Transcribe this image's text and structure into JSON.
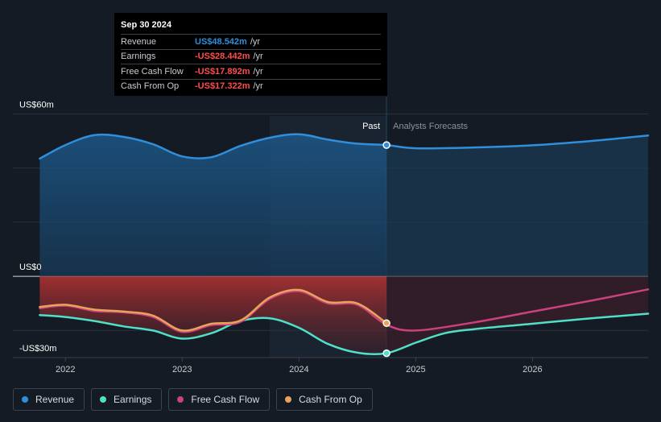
{
  "tooltip": {
    "date": "Sep 30 2024",
    "rows": [
      {
        "label": "Revenue",
        "value": "US$48.542m",
        "unit": "/yr",
        "color": "#2f8fdc"
      },
      {
        "label": "Earnings",
        "value": "-US$28.442m",
        "unit": "/yr",
        "color": "#ff4d4d"
      },
      {
        "label": "Free Cash Flow",
        "value": "-US$17.892m",
        "unit": "/yr",
        "color": "#ff4d4d"
      },
      {
        "label": "Cash From Op",
        "value": "-US$17.322m",
        "unit": "/yr",
        "color": "#ff4d4d"
      }
    ]
  },
  "labels": {
    "past": "Past",
    "forecast": "Analysts Forecasts"
  },
  "legend": [
    {
      "label": "Revenue",
      "color": "#2f8fdc"
    },
    {
      "label": "Earnings",
      "color": "#4fe0c8"
    },
    {
      "label": "Free Cash Flow",
      "color": "#c9427e"
    },
    {
      "label": "Cash From Op",
      "color": "#e8a45a"
    }
  ],
  "chart_data": {
    "type": "area",
    "y_tick_labels": [
      "US$60m",
      "US$0",
      "-US$30m"
    ],
    "y_ticks": [
      60,
      0,
      -30
    ],
    "ylim": [
      -30,
      64
    ],
    "x_tick_labels": [
      "2022",
      "2023",
      "2024",
      "2025",
      "2026"
    ],
    "x_ticks": [
      2022,
      2023,
      2024,
      2025,
      2026
    ],
    "xlim": [
      2021.55,
      2026.99
    ],
    "past_end": 2024.75,
    "highlight_start": 2023.75,
    "grid": true,
    "series": [
      {
        "name": "Revenue",
        "color": "#2f8fdc",
        "x": [
          2021.78,
          2022.0,
          2022.25,
          2022.5,
          2022.75,
          2023.0,
          2023.25,
          2023.5,
          2023.75,
          2024.0,
          2024.25,
          2024.5,
          2024.75,
          2025.0,
          2025.5,
          2026.0,
          2026.5,
          2026.99
        ],
        "y": [
          43.5,
          48.5,
          52.2,
          51.5,
          48.8,
          44.3,
          44.0,
          48.2,
          51.2,
          52.5,
          50.5,
          49.0,
          48.5,
          47.3,
          47.6,
          48.4,
          50.0,
          52.0
        ]
      },
      {
        "name": "Earnings",
        "color": "#4fe0c8",
        "x": [
          2021.78,
          2022.0,
          2022.25,
          2022.5,
          2022.75,
          2023.0,
          2023.25,
          2023.5,
          2023.75,
          2024.0,
          2024.25,
          2024.5,
          2024.75,
          2025.0,
          2025.25,
          2025.5,
          2026.0,
          2026.5,
          2026.99
        ],
        "y": [
          -14.3,
          -15.0,
          -16.5,
          -18.5,
          -20.0,
          -23.0,
          -21.0,
          -16.5,
          -15.5,
          -19.0,
          -25.0,
          -28.2,
          -28.4,
          -24.5,
          -21.0,
          -19.5,
          -17.5,
          -15.5,
          -13.8
        ]
      },
      {
        "name": "Free Cash Flow",
        "color": "#c9427e",
        "x": [
          2021.78,
          2022.0,
          2022.25,
          2022.5,
          2022.75,
          2023.0,
          2023.25,
          2023.5,
          2023.75,
          2024.0,
          2024.25,
          2024.5,
          2024.75,
          2025.0,
          2025.5,
          2026.0,
          2026.5,
          2026.99
        ],
        "y": [
          -11.8,
          -10.8,
          -12.8,
          -13.3,
          -15.0,
          -20.5,
          -18.0,
          -16.8,
          -8.3,
          -5.5,
          -10.0,
          -10.5,
          -17.9,
          -20.0,
          -17.0,
          -13.0,
          -9.0,
          -4.8
        ]
      },
      {
        "name": "Cash From Op",
        "color": "#e8a45a",
        "x": [
          2021.78,
          2022.0,
          2022.25,
          2022.5,
          2022.75,
          2023.0,
          2023.25,
          2023.5,
          2023.75,
          2024.0,
          2024.25,
          2024.5,
          2024.75
        ],
        "y": [
          -11.3,
          -10.5,
          -12.3,
          -13.0,
          -14.5,
          -20.0,
          -17.5,
          -16.3,
          -7.8,
          -5.0,
          -9.5,
          -10.0,
          -17.3
        ]
      }
    ]
  }
}
